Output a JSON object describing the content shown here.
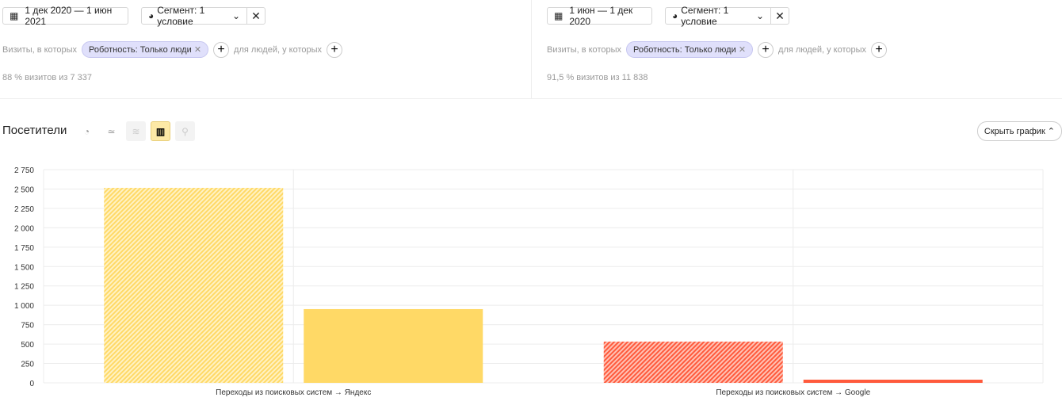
{
  "segments": [
    {
      "date": "1 дек 2020 — 1 июн 2021",
      "segment": "Сегмент: 1 условие",
      "visits_label": "Визиты, в которых",
      "chip": "Роботность: Только люди",
      "people_label": "для людей, у которых",
      "stat": "88 % визитов из 7 337"
    },
    {
      "date": "1 июн — 1 дек 2020",
      "segment": "Сегмент: 1 условие",
      "visits_label": "Визиты, в которых",
      "chip": "Роботность: Только люди",
      "people_label": "для людей, у которых",
      "stat": "91,5 % визитов из 11 838"
    }
  ],
  "report": {
    "title": "Посетители",
    "hide_chart": "Скрыть график",
    "icons": [
      "pie-chart-icon",
      "line-chart-icon",
      "area-chart-icon",
      "bar-chart-icon",
      "map-icon"
    ],
    "active_icon": "bar-chart-icon"
  },
  "chart_data": {
    "type": "bar",
    "categories": [
      "Переходы из поисковых систем → Яндекс",
      "Переходы из поисковых систем → Google"
    ],
    "series": [
      {
        "values": [
          2515,
          532
        ],
        "pattern": "hatched"
      },
      {
        "values": [
          951,
          41
        ],
        "pattern": "solid"
      }
    ],
    "category_colors": [
      "#ffd966",
      "#ff5a3c"
    ],
    "yticks": [
      "0",
      "250",
      "500",
      "750",
      "1 000",
      "1 250",
      "1 500",
      "1 750",
      "2 000",
      "2 250",
      "2 500",
      "2 750"
    ],
    "ylim": [
      0,
      2750
    ],
    "grid": true
  }
}
